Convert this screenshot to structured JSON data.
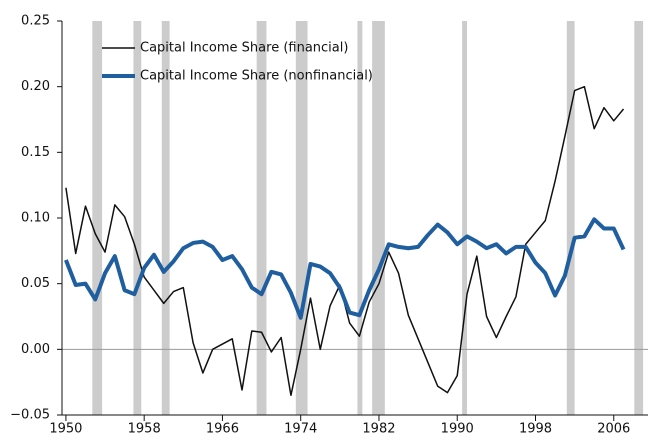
{
  "chart_data": {
    "type": "line",
    "x": [
      1950,
      1951,
      1952,
      1953,
      1954,
      1955,
      1956,
      1957,
      1958,
      1959,
      1960,
      1961,
      1962,
      1963,
      1964,
      1965,
      1966,
      1967,
      1968,
      1969,
      1970,
      1971,
      1972,
      1973,
      1974,
      1975,
      1976,
      1977,
      1978,
      1979,
      1980,
      1981,
      1982,
      1983,
      1984,
      1985,
      1986,
      1987,
      1988,
      1989,
      1990,
      1991,
      1992,
      1993,
      1994,
      1995,
      1996,
      1997,
      1998,
      1999,
      2000,
      2001,
      2002,
      2003,
      2004,
      2005,
      2006,
      2007
    ],
    "series": [
      {
        "name": "Capital Income Share (financial)",
        "color": "#111111",
        "width": 1.5,
        "values": [
          0.123,
          0.073,
          0.109,
          0.088,
          0.074,
          0.11,
          0.101,
          0.08,
          0.055,
          0.045,
          0.035,
          0.044,
          0.047,
          0.005,
          -0.018,
          0.0,
          0.004,
          0.008,
          -0.031,
          0.014,
          0.013,
          -0.002,
          0.009,
          -0.035,
          0.0,
          0.039,
          0.0,
          0.033,
          0.049,
          0.02,
          0.01,
          0.036,
          0.05,
          0.074,
          0.058,
          0.026,
          0.008,
          -0.01,
          -0.028,
          -0.033,
          -0.02,
          0.042,
          0.071,
          0.025,
          0.009,
          0.025,
          0.04,
          0.08,
          0.089,
          0.098,
          0.128,
          0.162,
          0.197,
          0.2,
          0.168,
          0.184,
          0.174,
          0.183
        ]
      },
      {
        "name": "Capital Income Share (nonfinancial)",
        "color": "#1f5fa0",
        "width": 4,
        "values": [
          0.068,
          0.049,
          0.05,
          0.038,
          0.058,
          0.071,
          0.045,
          0.042,
          0.062,
          0.072,
          0.059,
          0.067,
          0.077,
          0.081,
          0.082,
          0.078,
          0.068,
          0.071,
          0.061,
          0.047,
          0.042,
          0.059,
          0.057,
          0.043,
          0.024,
          0.065,
          0.063,
          0.058,
          0.047,
          0.028,
          0.026,
          0.045,
          0.061,
          0.08,
          0.078,
          0.077,
          0.078,
          0.087,
          0.095,
          0.089,
          0.08,
          0.086,
          0.082,
          0.077,
          0.08,
          0.073,
          0.078,
          0.078,
          0.066,
          0.058,
          0.041,
          0.056,
          0.085,
          0.086,
          0.099,
          0.092,
          0.092,
          0.076
        ]
      }
    ],
    "recessions": [
      [
        1952.7,
        1953.7
      ],
      [
        1956.9,
        1957.7
      ],
      [
        1959.8,
        1960.6
      ],
      [
        1969.5,
        1970.5
      ],
      [
        1973.5,
        1974.7
      ],
      [
        1979.8,
        1980.3
      ],
      [
        1981.3,
        1982.6
      ],
      [
        1990.5,
        1991.0
      ],
      [
        2001.2,
        2002.0
      ],
      [
        2008.1,
        2009.0
      ]
    ],
    "recession_color": "#cccccc",
    "xlim": [
      1949.6,
      2009.5
    ],
    "ylim": [
      -0.05,
      0.25
    ],
    "xticks": [
      1950,
      1958,
      1966,
      1974,
      1982,
      1990,
      1998,
      2006
    ],
    "yticks": [
      {
        "value": -0.05,
        "label": "−0.05"
      },
      {
        "value": 0,
        "label": "0.00"
      },
      {
        "value": 0.05,
        "label": "0.05"
      },
      {
        "value": 0.1,
        "label": "0.10"
      },
      {
        "value": 0.15,
        "label": "0.15"
      },
      {
        "value": 0.2,
        "label": "0.20"
      },
      {
        "value": 0.25,
        "label": "0.25"
      }
    ],
    "zero_line": true,
    "legend": "upper left"
  }
}
